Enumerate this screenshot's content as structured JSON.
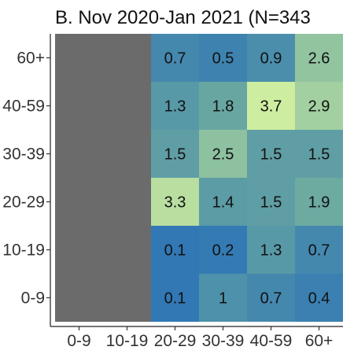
{
  "chart_data": {
    "type": "heatmap",
    "title": "B. Nov 2020-Jan 2021 (N=343",
    "x_categories": [
      "0-9",
      "10-19",
      "20-29",
      "30-39",
      "40-59",
      "60+"
    ],
    "y_categories": [
      "0-9",
      "10-19",
      "20-29",
      "30-39",
      "40-59",
      "60+"
    ],
    "missing_columns": [
      "0-9",
      "10-19"
    ],
    "missing_color": "#6b6b6b",
    "cells": [
      {
        "x": "20-29",
        "y": "0-9",
        "value": 0.1,
        "label": "0.1"
      },
      {
        "x": "30-39",
        "y": "0-9",
        "value": 1,
        "label": "1"
      },
      {
        "x": "40-59",
        "y": "0-9",
        "value": 0.7,
        "label": "0.7"
      },
      {
        "x": "60+",
        "y": "0-9",
        "value": 0.4,
        "label": "0.4"
      },
      {
        "x": "20-29",
        "y": "10-19",
        "value": 0.1,
        "label": "0.1"
      },
      {
        "x": "30-39",
        "y": "10-19",
        "value": 0.2,
        "label": "0.2"
      },
      {
        "x": "40-59",
        "y": "10-19",
        "value": 1.3,
        "label": "1.3"
      },
      {
        "x": "60+",
        "y": "10-19",
        "value": 0.7,
        "label": "0.7"
      },
      {
        "x": "20-29",
        "y": "20-29",
        "value": 3.3,
        "label": "3.3"
      },
      {
        "x": "30-39",
        "y": "20-29",
        "value": 1.4,
        "label": "1.4"
      },
      {
        "x": "40-59",
        "y": "20-29",
        "value": 1.5,
        "label": "1.5"
      },
      {
        "x": "60+",
        "y": "20-29",
        "value": 1.9,
        "label": "1.9"
      },
      {
        "x": "20-29",
        "y": "30-39",
        "value": 1.5,
        "label": "1.5"
      },
      {
        "x": "30-39",
        "y": "30-39",
        "value": 2.5,
        "label": "2.5"
      },
      {
        "x": "40-59",
        "y": "30-39",
        "value": 1.5,
        "label": "1.5"
      },
      {
        "x": "60+",
        "y": "30-39",
        "value": 1.5,
        "label": "1.5"
      },
      {
        "x": "20-29",
        "y": "40-59",
        "value": 1.3,
        "label": "1.3"
      },
      {
        "x": "30-39",
        "y": "40-59",
        "value": 1.8,
        "label": "1.8"
      },
      {
        "x": "40-59",
        "y": "40-59",
        "value": 3.7,
        "label": "3.7"
      },
      {
        "x": "60+",
        "y": "40-59",
        "value": 2.9,
        "label": "2.9"
      },
      {
        "x": "20-29",
        "y": "60+",
        "value": 0.7,
        "label": "0.7"
      },
      {
        "x": "30-39",
        "y": "60+",
        "value": 0.5,
        "label": "0.5"
      },
      {
        "x": "40-59",
        "y": "60+",
        "value": 0.9,
        "label": "0.9"
      },
      {
        "x": "60+",
        "y": "60+",
        "value": 2.6,
        "label": "2.6"
      }
    ],
    "color_scale": {
      "low": "#2e75b6",
      "mid": "#6aa8a0",
      "high": "#cdeea0",
      "min": 0,
      "max": 3.7
    },
    "grid": false
  }
}
